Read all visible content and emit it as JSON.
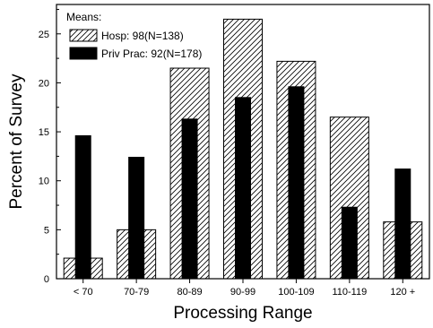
{
  "chart_data": {
    "type": "bar",
    "xlabel": "Processing Range",
    "ylabel": "Percent of Survey",
    "categories": [
      "< 70",
      "70-79",
      "80-89",
      "90-99",
      "100-109",
      "110-119",
      "120 +"
    ],
    "ylim": [
      0,
      28
    ],
    "yticks": [
      0,
      5,
      10,
      15,
      20,
      25
    ],
    "grid": false,
    "legend": {
      "title": "Means:",
      "position": "top-left"
    },
    "series": [
      {
        "name": "Hosp: 98(N=138)",
        "style": "hatched",
        "color": "#000000",
        "values": [
          2.1,
          5.0,
          21.5,
          26.5,
          22.2,
          16.5,
          5.8
        ]
      },
      {
        "name": "Priv Prac: 92(N=178)",
        "style": "solid",
        "color": "#000000",
        "values": [
          14.6,
          12.4,
          16.3,
          18.5,
          19.6,
          7.3,
          11.2
        ]
      }
    ]
  }
}
